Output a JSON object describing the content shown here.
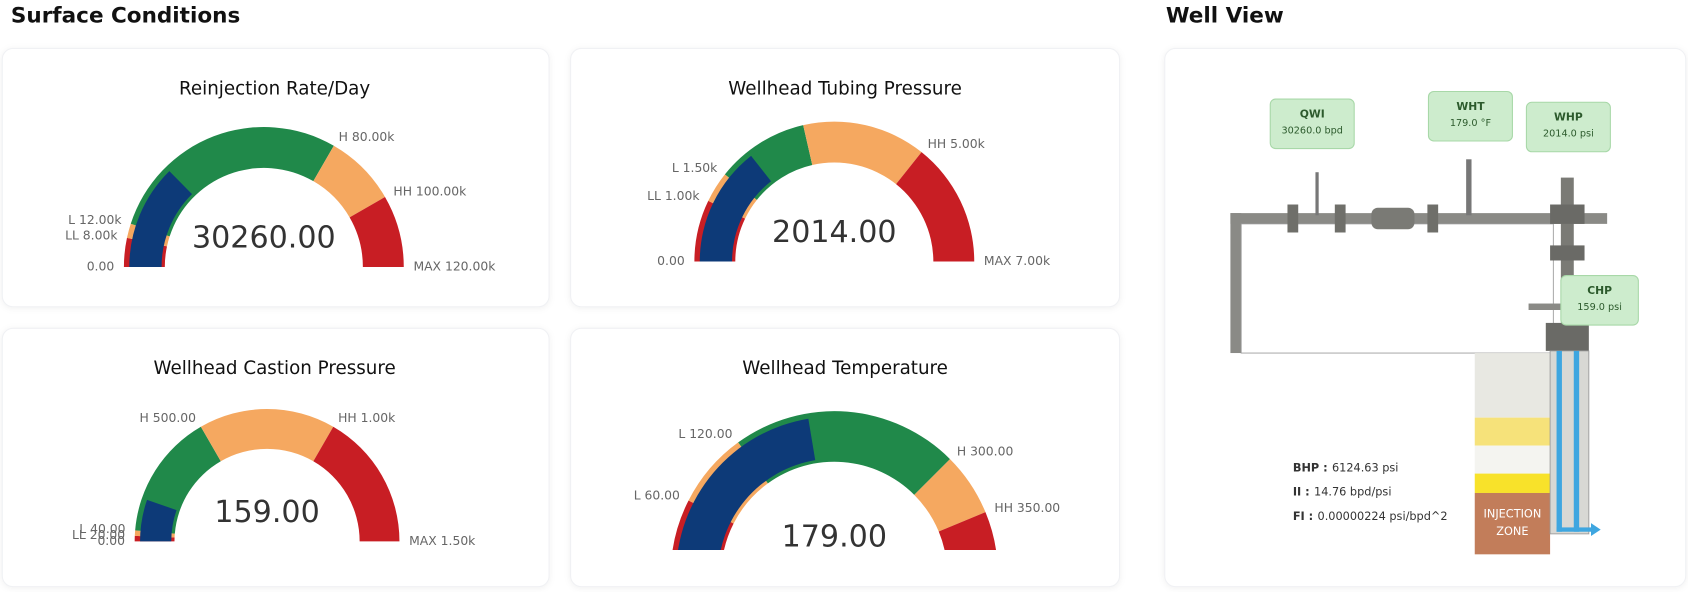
{
  "header": {
    "surface": "Surface Conditions",
    "well": "Well View"
  },
  "gauges": [
    {
      "title": "Reinjection Rate/Day",
      "value": 30260,
      "value_label": "30260.00",
      "min": 0,
      "max": 120000,
      "bar_color": "#0d3a78",
      "bands": [
        {
          "to": 8000,
          "color": "#c81e24"
        },
        {
          "to": 12000,
          "color": "#f5a860"
        },
        {
          "to": 80000,
          "color": "#20894a"
        },
        {
          "to": 100000,
          "color": "#f5a860"
        },
        {
          "to": 120000,
          "color": "#c81e24"
        }
      ],
      "labels": [
        {
          "value": 0,
          "label": "0.00"
        },
        {
          "value": 8000,
          "label": "LL 8.00k"
        },
        {
          "value": 12000,
          "label": "L 12.00k"
        },
        {
          "value": 80000,
          "label": "H 80.00k"
        },
        {
          "value": 100000,
          "label": "HH 100.00k"
        },
        {
          "value": 120000,
          "label": "MAX 120.00k"
        }
      ]
    },
    {
      "title": "Wellhead Tubing Pressure",
      "value": 2014,
      "value_label": "2014.00",
      "min": 0,
      "max": 7000,
      "bar_color": "#0d3a78",
      "bands": [
        {
          "to": 1000,
          "color": "#c81e24"
        },
        {
          "to": 1500,
          "color": "#f5a860"
        },
        {
          "to": 3000,
          "color": "#20894a"
        },
        {
          "to": 5000,
          "color": "#f5a860"
        },
        {
          "to": 7000,
          "color": "#c81e24"
        }
      ],
      "labels": [
        {
          "value": 0,
          "label": "0.00"
        },
        {
          "value": 1000,
          "label": "LL 1.00k"
        },
        {
          "value": 1500,
          "label": "L 1.50k"
        },
        {
          "value": 5000,
          "label": "HH 5.00k"
        },
        {
          "value": 7000,
          "label": "MAX 7.00k"
        }
      ]
    },
    {
      "title": "Wellhead Castion Pressure",
      "value": 159,
      "value_label": "159.00",
      "min": 0,
      "max": 1500,
      "bar_color": "#0d3a78",
      "bands": [
        {
          "to": 20,
          "color": "#c81e24"
        },
        {
          "to": 40,
          "color": "#f5a860"
        },
        {
          "to": 500,
          "color": "#20894a"
        },
        {
          "to": 1000,
          "color": "#f5a860"
        },
        {
          "to": 1500,
          "color": "#c81e24"
        }
      ],
      "labels": [
        {
          "value": 0,
          "label": "0.00"
        },
        {
          "value": 20,
          "label": "LL 20.00"
        },
        {
          "value": 40,
          "label": "L 40.00"
        },
        {
          "value": 500,
          "label": "H 500.00"
        },
        {
          "value": 1000,
          "label": "HH 1.00k"
        },
        {
          "value": 1500,
          "label": "MAX 1.50k"
        }
      ]
    },
    {
      "title": "Wellhead Temperature",
      "value": 179,
      "value_label": "179.00",
      "min": 0,
      "max": 400,
      "bar_color": "#0d3a78",
      "bands": [
        {
          "to": 60,
          "color": "#c81e24"
        },
        {
          "to": 120,
          "color": "#f5a860"
        },
        {
          "to": 300,
          "color": "#20894a"
        },
        {
          "to": 350,
          "color": "#f5a860"
        },
        {
          "to": 400,
          "color": "#c81e24"
        }
      ],
      "labels": [
        {
          "value": 60,
          "label": "L 60.00"
        },
        {
          "value": 120,
          "label": "L 120.00"
        },
        {
          "value": 300,
          "label": "H 300.00"
        },
        {
          "value": 350,
          "label": "HH 350.00"
        }
      ]
    }
  ],
  "well": {
    "tags": [
      {
        "name": "QWI",
        "value": "30260.0 bpd"
      },
      {
        "name": "WHT",
        "value": "179.0 °F"
      },
      {
        "name": "WHP",
        "value": "2014.0 psi"
      },
      {
        "name": "CHP",
        "value": "159.0 psi"
      }
    ],
    "stats": [
      {
        "name": "BHP :",
        "value": "6124.63 psi"
      },
      {
        "name": "II :",
        "value": "14.76 bpd/psi"
      },
      {
        "name": "FI :",
        "value": "0.00000224 psi/bpd^2"
      }
    ],
    "zone": [
      "INJECTION",
      "ZONE"
    ]
  }
}
